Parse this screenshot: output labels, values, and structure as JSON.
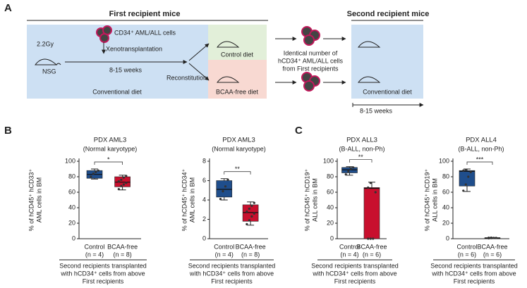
{
  "panels": {
    "a": "A",
    "b": "B",
    "c": "C"
  },
  "diagram": {
    "first_header": "First recipient mice",
    "second_header": "Second recipient mice",
    "cells_label": "CD34⁺ AML/ALL cells",
    "dose": "2.2Gy",
    "xeno": "Xenotransplantation",
    "strain": "NSG",
    "weeks1": "8-15 weeks",
    "reconstitution": "Reconstitution",
    "diet1": "Conventional diet",
    "control_diet": "Control diet",
    "bcaa_diet": "BCAA-free diet",
    "transfer": [
      "Identical number of",
      "hCD34⁺ AML/ALL cells",
      "from First recipients"
    ],
    "diet2": "Conventional diet",
    "weeks2": "8-15 weeks"
  },
  "chart_data": [
    {
      "type": "box",
      "title": "PDX AML3",
      "subtitle": "(Normal karyotype)",
      "ylabel": [
        "% of hCD45⁺ hCD33⁺",
        "AML cells in BM"
      ],
      "ylim": [
        0,
        100
      ],
      "yticks": [
        0,
        20,
        40,
        60,
        80,
        100
      ],
      "significance": "*",
      "series": [
        {
          "name": "Control",
          "n_label": "(n = 4)",
          "color": "#1f4e8c",
          "min": 77,
          "q1": 78,
          "median": 83,
          "q3": 88,
          "max": 90,
          "points": [
            80,
            84,
            86,
            88
          ]
        },
        {
          "name": "BCAA-free",
          "n_label": "(n = 8)",
          "color": "#c8102e",
          "min": 63,
          "q1": 67,
          "median": 73,
          "q3": 80,
          "max": 82,
          "points": [
            64,
            68,
            70,
            72,
            74,
            76,
            79,
            81
          ]
        }
      ],
      "note": [
        "Second recipients transplanted",
        "with hCD34⁺ cells from above",
        "First recipients"
      ]
    },
    {
      "type": "box",
      "title": "PDX AML3",
      "subtitle": "(Normal karyotype)",
      "ylabel": [
        "% of hCD45⁺ hCD34⁺",
        "AML cells in BM"
      ],
      "ylim": [
        0,
        8
      ],
      "yticks": [
        0,
        2,
        4,
        6,
        8
      ],
      "significance": "**",
      "series": [
        {
          "name": "Control",
          "n_label": "(n = 4)",
          "color": "#1f4e8c",
          "min": 4.0,
          "q1": 4.3,
          "median": 5.1,
          "q3": 6.0,
          "max": 6.2,
          "points": [
            4.1,
            4.9,
            5.4,
            6.1
          ]
        },
        {
          "name": "BCAA-free",
          "n_label": "(n = 8)",
          "color": "#c8102e",
          "min": 1.4,
          "q1": 1.8,
          "median": 2.7,
          "q3": 3.5,
          "max": 3.8,
          "points": [
            1.5,
            1.9,
            2.3,
            2.6,
            2.8,
            3.1,
            3.4,
            3.7
          ]
        }
      ],
      "note": [
        "Second recipients transplanted",
        "with hCD34⁺ cells from above",
        "First recipients"
      ]
    },
    {
      "type": "box",
      "title": "PDX ALL3",
      "subtitle": "(B-ALL, non-Ph)",
      "ylabel": [
        "% of hCD45⁺ hCD19⁺",
        "ALL cells in BM"
      ],
      "ylim": [
        0,
        100
      ],
      "yticks": [
        0,
        20,
        40,
        60,
        80,
        100
      ],
      "significance": "**",
      "series": [
        {
          "name": "Control",
          "n_label": "(n = 4)",
          "color": "#1f4e8c",
          "min": 82,
          "q1": 85,
          "median": 89,
          "q3": 92,
          "max": 93,
          "points": [
            83,
            87,
            90,
            92
          ]
        },
        {
          "name": "BCAA-free",
          "n_label": "(n = 6)",
          "color": "#c8102e",
          "min": 0,
          "q1": 0,
          "median": 65,
          "q3": 66,
          "max": 73,
          "points": [
            0,
            0,
            0,
            60,
            66,
            72
          ]
        }
      ],
      "note": [
        "Second recipients transplanted",
        "with hCD34⁺ cells from above",
        "First recipients"
      ]
    },
    {
      "type": "box",
      "title": "PDX ALL4",
      "subtitle": "(B-ALL, non-Ph)",
      "ylabel": [
        "% of hCD45⁺ hCD19⁺",
        "ALL cells in BM"
      ],
      "ylim": [
        0,
        100
      ],
      "yticks": [
        0,
        20,
        40,
        60,
        80,
        100
      ],
      "significance": "***",
      "series": [
        {
          "name": "Control",
          "n_label": "(n = 6)",
          "color": "#1f4e8c",
          "min": 61,
          "q1": 68,
          "median": 87,
          "q3": 88,
          "max": 90,
          "points": [
            62,
            70,
            80,
            86,
            88,
            89
          ]
        },
        {
          "name": "BCAA-free",
          "n_label": "(n = 6)",
          "color": "#c8102e",
          "min": 0.5,
          "q1": 0.7,
          "median": 1,
          "q3": 1.2,
          "max": 1.5,
          "points": [
            0.6,
            0.8,
            1,
            1.1,
            1.3,
            1.4
          ]
        }
      ],
      "note": [
        "Second recipients transplanted",
        "with hCD34⁺ cells from above",
        "First recipients"
      ]
    }
  ]
}
